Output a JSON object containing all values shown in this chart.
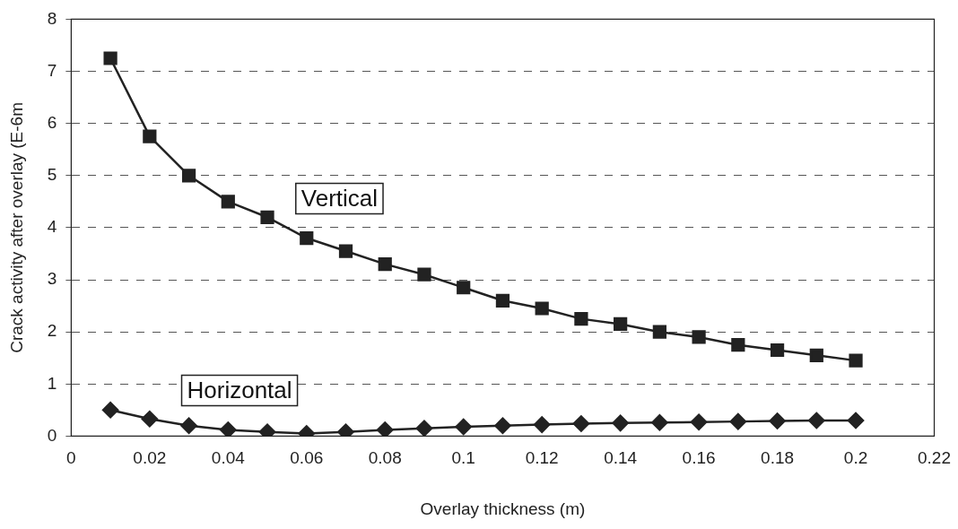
{
  "chart_data": {
    "type": "line",
    "xlabel": "Overlay thickness (m)",
    "ylabel": "Crack activity after overlay (E-6m",
    "x": [
      0.01,
      0.02,
      0.03,
      0.04,
      0.05,
      0.06,
      0.07,
      0.08,
      0.09,
      0.1,
      0.11,
      0.12,
      0.13,
      0.14,
      0.15,
      0.16,
      0.17,
      0.18,
      0.19,
      0.2
    ],
    "series": [
      {
        "name": "Vertical",
        "color": "#222222",
        "marker": "square",
        "values": [
          7.25,
          5.75,
          5.0,
          4.5,
          4.2,
          3.8,
          3.55,
          3.3,
          3.1,
          2.85,
          2.6,
          2.45,
          2.25,
          2.15,
          2.0,
          1.9,
          1.75,
          1.65,
          1.55,
          1.45
        ]
      },
      {
        "name": "Horizontal",
        "color": "#222222",
        "marker": "diamond",
        "values": [
          0.5,
          0.33,
          0.2,
          0.12,
          0.08,
          0.05,
          0.08,
          0.12,
          0.15,
          0.18,
          0.2,
          0.22,
          0.24,
          0.25,
          0.26,
          0.27,
          0.28,
          0.29,
          0.3,
          0.3
        ]
      }
    ],
    "xlim": [
      0,
      0.22
    ],
    "xticks": [
      0,
      0.02,
      0.04,
      0.06,
      0.08,
      0.1,
      0.12,
      0.14,
      0.16,
      0.18,
      0.2,
      0.22
    ],
    "ylim": [
      0,
      8
    ],
    "yticks": [
      0,
      1,
      2,
      3,
      4,
      5,
      6,
      7,
      8
    ],
    "grid": "y",
    "legend": false,
    "line_style": "solid"
  }
}
